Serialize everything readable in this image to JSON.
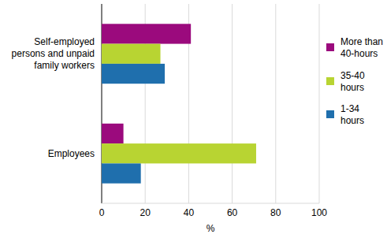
{
  "chart_data": {
    "type": "bar",
    "orientation": "horizontal",
    "categories": [
      "Self-employed persons and unpaid family workers",
      "Employees"
    ],
    "series": [
      {
        "name": "More than 40-hours",
        "color": "#9b0a7d",
        "values": [
          41,
          10
        ]
      },
      {
        "name": "35-40 hours",
        "color": "#b8d432",
        "values": [
          27,
          71
        ]
      },
      {
        "name": "1-34 hours",
        "color": "#1f6fad",
        "values": [
          29,
          18
        ]
      }
    ],
    "x_label": "%",
    "xlim": [
      0,
      100
    ],
    "xticks": [
      0,
      20,
      40,
      60,
      80,
      100
    ],
    "grid": true,
    "legend": "right"
  }
}
